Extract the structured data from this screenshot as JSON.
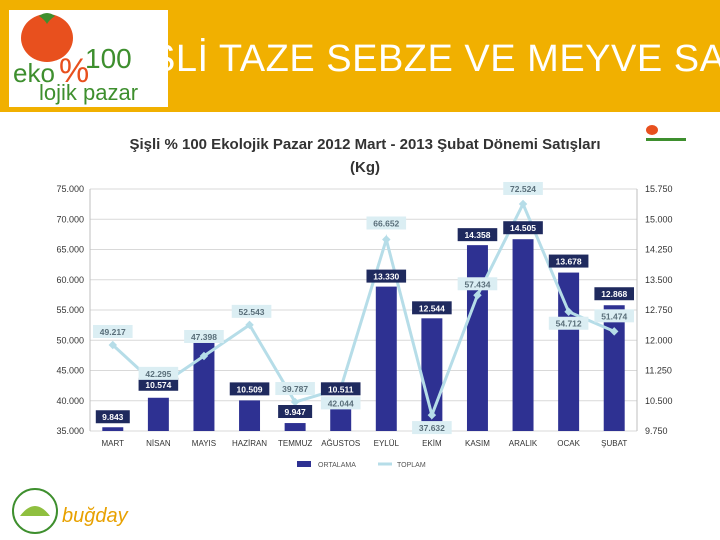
{
  "slide": {
    "title": "ŞLİ TAZE SEBZE VE MEYVE SATI",
    "logo_text_eko": "eko",
    "logo_text_100": "100",
    "logo_text_lojik": "lojik pazar",
    "logo_percent": "%",
    "footer_logo_text": "buğday",
    "colors": {
      "header": "#f1b000",
      "bar": "#2e3192",
      "line": "#b6dde8",
      "label_dark": "#1f2a5e",
      "label_light": "#dbeef3"
    }
  },
  "chart_data": {
    "type": "bar",
    "title_line1": "Şişli % 100 Ekolojik Pazar 2012 Mart - 2013 Şubat Dönemi Satışları",
    "title_line2": "(Kg)",
    "categories": [
      "MART",
      "NİSAN",
      "MAYIS",
      "HAZİRAN",
      "TEMMUZ",
      "AĞUSTOS",
      "EYLÜL",
      "EKİM",
      "KASIM",
      "ARALIK",
      "OCAK",
      "ŞUBAT"
    ],
    "series": [
      {
        "name": "ORTALAMA",
        "type": "bar",
        "axis": "right",
        "values": [
          9843,
          10574,
          12050,
          10509,
          9947,
          10511,
          13330,
          12544,
          14358,
          14505,
          13678,
          12868
        ],
        "labels": [
          "9.843",
          "10.574",
          "",
          "10.509",
          "9.947",
          "10.511",
          "13.330",
          "12.544",
          "14.358",
          "14.505",
          "13.678",
          "12.868"
        ]
      },
      {
        "name": "TOPLAM",
        "type": "line",
        "axis": "left",
        "values": [
          49217,
          42295,
          47398,
          52543,
          39787,
          42044,
          66652,
          37632,
          57434,
          72524,
          54712,
          51474
        ],
        "labels": [
          "49.217",
          "42.295",
          "47.398",
          "52.543",
          "39.787",
          "42.044",
          "66.652",
          "37.632",
          "57.434",
          "72.524",
          "54.712",
          "51.474"
        ]
      }
    ],
    "left_axis": {
      "min": 35000,
      "max": 75000,
      "ticks": [
        "35.000",
        "40.000",
        "45.000",
        "50.000",
        "55.000",
        "60.000",
        "65.000",
        "70.000",
        "75.000"
      ]
    },
    "right_axis": {
      "min": 9750,
      "max": 15750,
      "ticks": [
        "9.750",
        "10.500",
        "11.250",
        "12.000",
        "12.750",
        "13.500",
        "14.250",
        "15.000",
        "15.750"
      ]
    },
    "grid": true,
    "legend_position": "bottom"
  }
}
